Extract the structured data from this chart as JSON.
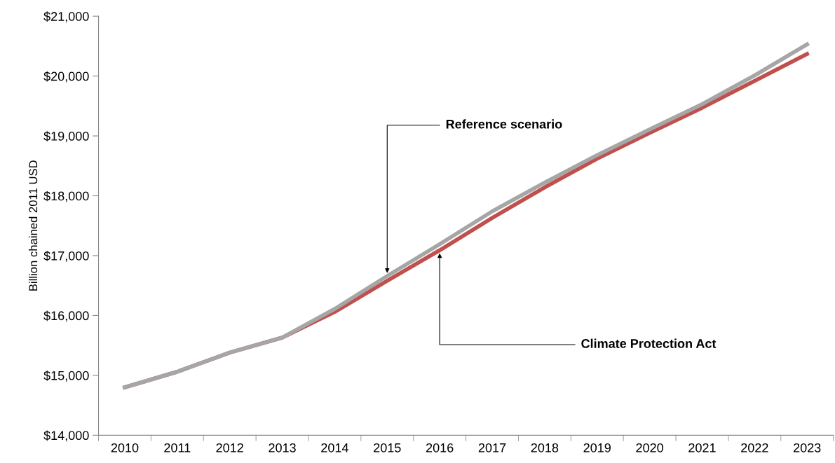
{
  "chart_data": {
    "type": "line",
    "categories": [
      "2010",
      "2011",
      "2012",
      "2013",
      "2014",
      "2015",
      "2016",
      "2017",
      "2018",
      "2019",
      "2020",
      "2021",
      "2022",
      "2023"
    ],
    "ylabel": "Billion chained 2011 USD",
    "ylim": [
      14000,
      21000
    ],
    "yticks": [
      {
        "value": 14000,
        "label": "$14,000"
      },
      {
        "value": 15000,
        "label": "$15,000"
      },
      {
        "value": 16000,
        "label": "$16,000"
      },
      {
        "value": 17000,
        "label": "$17,000"
      },
      {
        "value": 18000,
        "label": "$18,000"
      },
      {
        "value": 19000,
        "label": "$19,000"
      },
      {
        "value": 20000,
        "label": "$20,000"
      },
      {
        "value": 21000,
        "label": "$21,000"
      }
    ],
    "series": [
      {
        "color": "#c0504d",
        "values": [
          14800,
          15060,
          15380,
          15630,
          16060,
          16580,
          17090,
          17630,
          18140,
          18620,
          19050,
          19470,
          19920,
          20370
        ]
      },
      {
        "color": "#a6a6a6",
        "values": [
          14800,
          15060,
          15380,
          15630,
          16110,
          16660,
          17190,
          17740,
          18220,
          18680,
          19110,
          19530,
          20010,
          20530
        ]
      }
    ],
    "annotations": [
      {
        "text": "Reference scenario",
        "x": "2015",
        "y": 16660
      },
      {
        "text": "Climate Protection Act",
        "x": "2016",
        "y": 17090
      }
    ],
    "grid": false,
    "legend": false,
    "marker": "none",
    "line_style": "solid"
  }
}
